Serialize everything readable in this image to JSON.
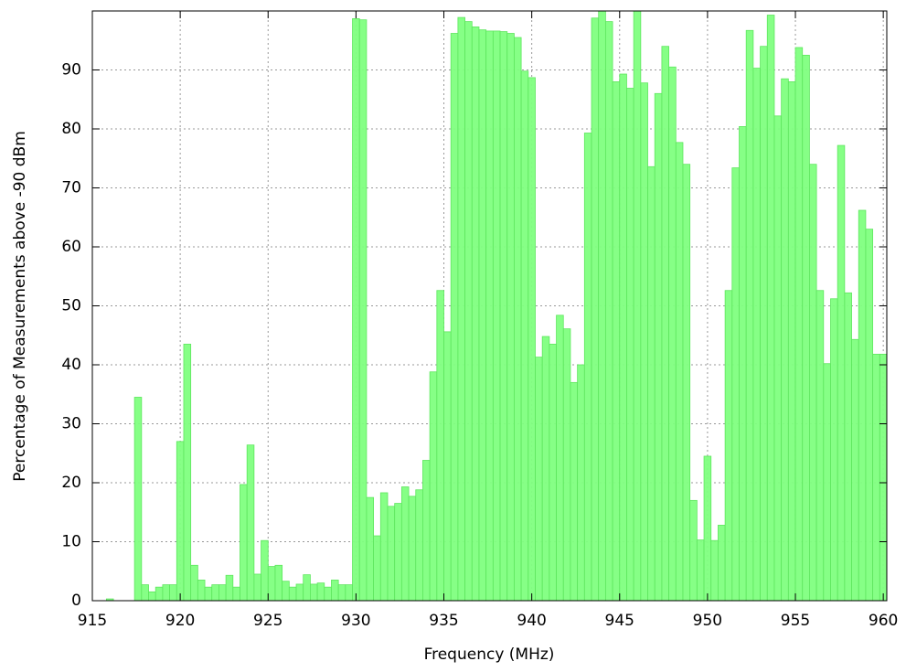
{
  "chart_data": {
    "type": "histogram",
    "xlabel": "Frequency (MHz)",
    "ylabel": "Percentage of Measurements above -90 dBm",
    "color": "#80ff80",
    "grid": true,
    "xlim": [
      915,
      960.2
    ],
    "ylim": [
      0,
      100
    ],
    "xticks": [
      915,
      920,
      925,
      930,
      935,
      940,
      945,
      950,
      955,
      960
    ],
    "yticks": [
      0,
      10,
      20,
      30,
      40,
      50,
      60,
      70,
      80,
      90
    ],
    "bins": [
      915,
      915.4,
      915.8,
      916.2,
      916.6,
      917,
      917.4,
      917.8,
      918.2,
      918.6,
      919,
      919.4,
      919.8,
      920.2,
      920.6,
      921,
      921.4,
      921.8,
      922.2,
      922.6,
      923,
      923.4,
      923.8,
      924.2,
      924.6,
      925,
      925.4,
      925.8,
      926.2,
      926.6,
      927,
      927.4,
      927.8,
      928.2,
      928.6,
      929,
      929.4,
      929.8,
      930.2,
      930.6,
      931,
      931.4,
      931.8,
      932.2,
      932.6,
      933,
      933.4,
      933.8,
      934.2,
      934.6,
      935,
      935.4,
      935.8,
      936.2,
      936.6,
      937,
      937.4,
      937.8,
      938.2,
      938.6,
      939,
      939.4,
      939.8,
      940.2,
      940.6,
      941,
      941.4,
      941.8,
      942.2,
      942.6,
      943,
      943.4,
      943.8,
      944.2,
      944.6,
      945,
      945.4,
      945.8,
      946.2,
      946.6,
      947,
      947.4,
      947.8,
      948.2,
      948.6,
      949,
      949.4,
      949.8,
      950.2,
      950.6,
      951,
      951.4,
      951.8,
      952.2,
      952.6,
      953,
      953.4,
      953.8,
      954.2,
      954.6,
      955,
      955.4,
      955.8,
      956.2,
      956.6,
      957,
      957.4,
      957.8,
      958.2,
      958.6,
      959,
      959.4,
      959.8,
      960.2
    ],
    "values": [
      0,
      0,
      0.3,
      0,
      0,
      0,
      34.5,
      2.7,
      1.5,
      2.3,
      2.7,
      2.7,
      27,
      43.5,
      6,
      3.5,
      2.3,
      2.7,
      2.7,
      4.3,
      2.3,
      19.7,
      26.4,
      4.5,
      10.2,
      5.8,
      6,
      3.3,
      2.3,
      2.8,
      4.4,
      2.8,
      3,
      2.3,
      3.5,
      2.7,
      2.7,
      98.7,
      98.5,
      17.5,
      11,
      18.3,
      16,
      16.5,
      19.3,
      17.7,
      18.8,
      23.8,
      38.8,
      52.6,
      45.6,
      96.2,
      98.9,
      98.2,
      97.3,
      96.8,
      96.6,
      96.6,
      96.5,
      96.2,
      95.5,
      89.8,
      88.7,
      41.3,
      44.8,
      43.5,
      48.4,
      46.1,
      37,
      40,
      79.3,
      98.8,
      100,
      98.2,
      88,
      89.3,
      86.9,
      100,
      87.8,
      73.6,
      86,
      94,
      90.5,
      77.7,
      74,
      17,
      10.3,
      24.5,
      10.2,
      12.8,
      52.6,
      73.4,
      80.4,
      96.7,
      90.3,
      94,
      99.3,
      82.2,
      88.5,
      88,
      93.8,
      92.5,
      74,
      52.6,
      40.2,
      51.2,
      77.2,
      52.2,
      44.3,
      66.2,
      63,
      41.8,
      41.8
    ]
  }
}
